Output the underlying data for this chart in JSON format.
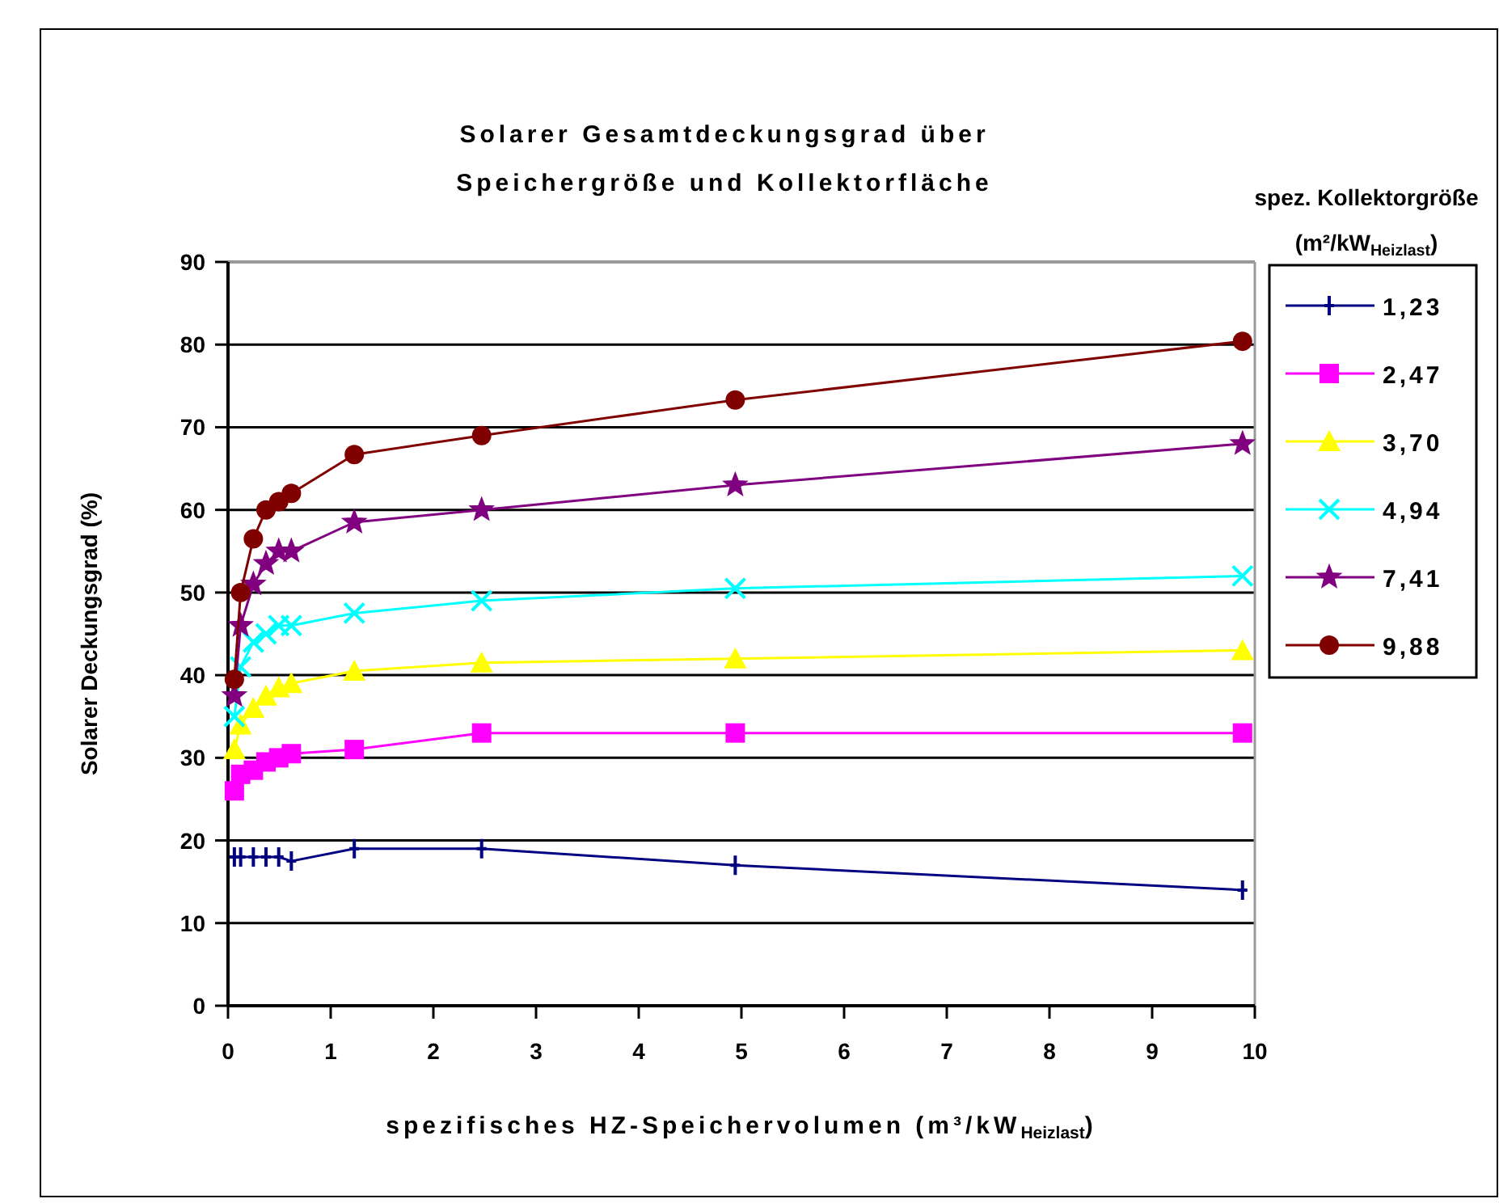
{
  "chart_data": {
    "type": "line",
    "title": "Solarer Gesamtdeckungsgrad über\nSpeichergröße und Kollektorfläche",
    "xlabel": "spezifisches HZ-Speichervolumen (m³/kW$_{Heizlast}$)",
    "ylabel": "Solarer Deckungsgrad (%)",
    "legend_title": "spez. Kollektorgröße\n(m²/kW$_{Heizlast}$)",
    "x": [
      0.062,
      0.123,
      0.247,
      0.37,
      0.494,
      0.617,
      1.23,
      2.47,
      4.94,
      9.88
    ],
    "xlim": [
      0,
      10
    ],
    "xticks": [
      0,
      1,
      2,
      3,
      4,
      5,
      6,
      7,
      8,
      9,
      10
    ],
    "ylim": [
      0,
      90
    ],
    "yticks": [
      0,
      10,
      20,
      30,
      40,
      50,
      60,
      70,
      80,
      90
    ],
    "grid": "y",
    "legend": "right",
    "line_style": "solid",
    "series": [
      {
        "name": "1,23",
        "color": "#000080",
        "marker": "cross",
        "values": [
          18,
          18,
          18,
          18,
          18,
          17.5,
          19,
          19,
          17,
          14
        ]
      },
      {
        "name": "2,47",
        "color": "#ff00ff",
        "marker": "square",
        "values": [
          26,
          28,
          28.5,
          29.5,
          30,
          30.5,
          31,
          33,
          33,
          33
        ]
      },
      {
        "name": "3,70",
        "color": "#ffff00",
        "marker": "triangle",
        "values": [
          31,
          34,
          36,
          37.5,
          38.5,
          39,
          40.5,
          41.5,
          42,
          43
        ]
      },
      {
        "name": "4,94",
        "color": "#00ffff",
        "marker": "x",
        "values": [
          35,
          41,
          44,
          45,
          46,
          46,
          47.5,
          49,
          50.5,
          52
        ]
      },
      {
        "name": "7,41",
        "color": "#800080",
        "marker": "star",
        "values": [
          37.5,
          46,
          51,
          53.5,
          55,
          55,
          58.5,
          60,
          63,
          68
        ]
      },
      {
        "name": "9,88",
        "color": "#800000",
        "marker": "circle",
        "values": [
          39.5,
          50,
          56.5,
          60,
          61,
          62,
          66.7,
          69,
          73.3,
          80.4
        ]
      }
    ]
  }
}
